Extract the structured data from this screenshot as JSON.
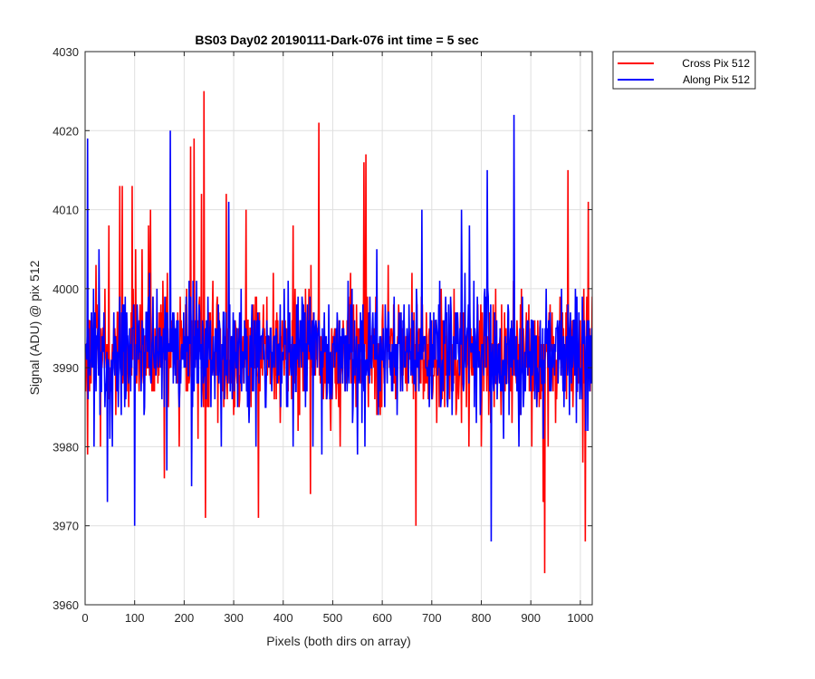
{
  "chart_data": {
    "type": "line",
    "title": "BS03 Day02 20190111-Dark-076 int time = 5 sec",
    "xlabel": "Pixels (both dirs on array)",
    "ylabel": "Signal (ADU) @ pix 512",
    "xlim": [
      0,
      1024
    ],
    "ylim": [
      3960,
      4030
    ],
    "x_ticks": [
      0,
      100,
      200,
      300,
      400,
      500,
      600,
      700,
      800,
      900,
      1000
    ],
    "y_ticks": [
      3960,
      3970,
      3980,
      3990,
      4000,
      4010,
      4020,
      4030
    ],
    "grid": true,
    "legend_position": "outside-top-right",
    "series": [
      {
        "name": "Cross Pix 512",
        "color": "#ff0000",
        "keypoints": [
          [
            0,
            3992
          ],
          [
            5,
            3979
          ],
          [
            10,
            3996
          ],
          [
            22,
            4003
          ],
          [
            31,
            3980
          ],
          [
            40,
            4000
          ],
          [
            48,
            4008
          ],
          [
            56,
            3992
          ],
          [
            62,
            3984
          ],
          [
            70,
            4013
          ],
          [
            75,
            4013
          ],
          [
            80,
            3990
          ],
          [
            88,
            3985
          ],
          [
            95,
            4013
          ],
          [
            102,
            4005
          ],
          [
            110,
            3995
          ],
          [
            115,
            4005
          ],
          [
            120,
            3991
          ],
          [
            128,
            4008
          ],
          [
            132,
            4010
          ],
          [
            140,
            3987
          ],
          [
            150,
            3997
          ],
          [
            160,
            3976
          ],
          [
            168,
            3985
          ],
          [
            180,
            3995
          ],
          [
            190,
            3980
          ],
          [
            200,
            3992
          ],
          [
            205,
            4000
          ],
          [
            213,
            4018
          ],
          [
            220,
            4019
          ],
          [
            228,
            3981
          ],
          [
            235,
            4012
          ],
          [
            240,
            4025
          ],
          [
            243,
            3971
          ],
          [
            250,
            3985
          ],
          [
            258,
            4001
          ],
          [
            262,
            3988
          ],
          [
            270,
            3997
          ],
          [
            285,
            4012
          ],
          [
            300,
            3984
          ],
          [
            310,
            3995
          ],
          [
            325,
            4010
          ],
          [
            335,
            3985
          ],
          [
            350,
            3971
          ],
          [
            360,
            3998
          ],
          [
            370,
            3994
          ],
          [
            380,
            4002
          ],
          [
            394,
            3983
          ],
          [
            410,
            3987
          ],
          [
            420,
            4008
          ],
          [
            430,
            3982
          ],
          [
            445,
            4000
          ],
          [
            455,
            3974
          ],
          [
            466,
            3995
          ],
          [
            472,
            4021
          ],
          [
            480,
            3988
          ],
          [
            495,
            3985
          ],
          [
            505,
            3988
          ],
          [
            515,
            3980
          ],
          [
            532,
            3999
          ],
          [
            542,
            3998
          ],
          [
            556,
            3989
          ],
          [
            563,
            4016
          ],
          [
            567,
            4017
          ],
          [
            572,
            3985
          ],
          [
            580,
            3995
          ],
          [
            594,
            3985
          ],
          [
            605,
            3990
          ],
          [
            612,
            4003
          ],
          [
            625,
            3988
          ],
          [
            635,
            3997
          ],
          [
            648,
            3994
          ],
          [
            660,
            4002
          ],
          [
            668,
            3970
          ],
          [
            675,
            3988
          ],
          [
            690,
            3994
          ],
          [
            702,
            3987
          ],
          [
            715,
            3985
          ],
          [
            725,
            3995
          ],
          [
            740,
            3987
          ],
          [
            760,
            3983
          ],
          [
            775,
            3980
          ],
          [
            790,
            3988
          ],
          [
            800,
            3980
          ],
          [
            815,
            3984
          ],
          [
            830,
            3988
          ],
          [
            840,
            3984
          ],
          [
            850,
            3995
          ],
          [
            862,
            3983
          ],
          [
            875,
            3988
          ],
          [
            890,
            3994
          ],
          [
            902,
            3980
          ],
          [
            915,
            3990
          ],
          [
            925,
            3973
          ],
          [
            928,
            3964
          ],
          [
            935,
            3980
          ],
          [
            950,
            3983
          ],
          [
            965,
            3988
          ],
          [
            975,
            4015
          ],
          [
            985,
            3985
          ],
          [
            995,
            3991
          ],
          [
            1005,
            3978
          ],
          [
            1010,
            3968
          ],
          [
            1016,
            4011
          ],
          [
            1024,
            3999
          ]
        ]
      },
      {
        "name": "Along Pix 512",
        "color": "#0000ff",
        "keypoints": [
          [
            0,
            3993
          ],
          [
            5,
            4019
          ],
          [
            10,
            3989
          ],
          [
            18,
            3980
          ],
          [
            28,
            4005
          ],
          [
            40,
            3985
          ],
          [
            45,
            3973
          ],
          [
            55,
            3980
          ],
          [
            63,
            3992
          ],
          [
            70,
            3999
          ],
          [
            80,
            3985
          ],
          [
            90,
            3995
          ],
          [
            100,
            3970
          ],
          [
            110,
            3993
          ],
          [
            120,
            3985
          ],
          [
            130,
            4002
          ],
          [
            145,
            4000
          ],
          [
            160,
            3985
          ],
          [
            165,
            3977
          ],
          [
            172,
            4020
          ],
          [
            180,
            3995
          ],
          [
            190,
            3985
          ],
          [
            200,
            3990
          ],
          [
            210,
            4001
          ],
          [
            215,
            3975
          ],
          [
            225,
            4001
          ],
          [
            235,
            3985
          ],
          [
            250,
            3993
          ],
          [
            263,
            3995
          ],
          [
            275,
            3980
          ],
          [
            290,
            4011
          ],
          [
            300,
            3992
          ],
          [
            315,
            4000
          ],
          [
            330,
            3986
          ],
          [
            345,
            3980
          ],
          [
            355,
            3991
          ],
          [
            365,
            3985
          ],
          [
            380,
            3993
          ],
          [
            395,
            3985
          ],
          [
            410,
            4001
          ],
          [
            420,
            3980
          ],
          [
            430,
            3999
          ],
          [
            445,
            3985
          ],
          [
            460,
            3980
          ],
          [
            478,
            3979
          ],
          [
            482,
            3992
          ],
          [
            495,
            3991
          ],
          [
            507,
            3995
          ],
          [
            512,
            3992
          ],
          [
            520,
            3988
          ],
          [
            531,
            4001
          ],
          [
            541,
            3985
          ],
          [
            550,
            3979
          ],
          [
            565,
            3980
          ],
          [
            578,
            3990
          ],
          [
            589,
            4005
          ],
          [
            605,
            3985
          ],
          [
            618,
            3992
          ],
          [
            630,
            3984
          ],
          [
            645,
            3990
          ],
          [
            656,
            3992
          ],
          [
            668,
            3990
          ],
          [
            680,
            4010
          ],
          [
            695,
            3985
          ],
          [
            710,
            3995
          ],
          [
            718,
            3985
          ],
          [
            732,
            3985
          ],
          [
            746,
            3992
          ],
          [
            760,
            4010
          ],
          [
            776,
            4008
          ],
          [
            780,
            3992
          ],
          [
            790,
            3983
          ],
          [
            800,
            3990
          ],
          [
            812,
            4015
          ],
          [
            820,
            3968
          ],
          [
            832,
            3986
          ],
          [
            845,
            3981
          ],
          [
            857,
            3992
          ],
          [
            866,
            4022
          ],
          [
            876,
            3980
          ],
          [
            890,
            3991
          ],
          [
            900,
            3987
          ],
          [
            912,
            3985
          ],
          [
            925,
            3981
          ],
          [
            940,
            3988
          ],
          [
            955,
            3988
          ],
          [
            965,
            3987
          ],
          [
            978,
            3984
          ],
          [
            992,
            3983
          ],
          [
            1003,
            3986
          ],
          [
            1015,
            3982
          ],
          [
            1024,
            3992
          ]
        ]
      }
    ]
  }
}
